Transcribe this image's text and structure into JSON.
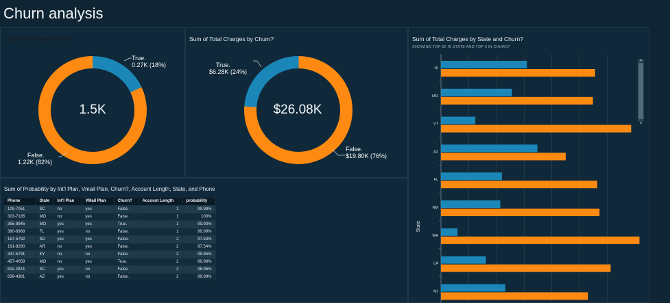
{
  "page_title": "Churn analysis",
  "colors": {
    "true": "#1a87b8",
    "false": "#ff8a12",
    "background": "#0f2533"
  },
  "risk_panel": {
    "title": "Customers under the risk",
    "center": "1.5K",
    "true_label_1": "True.",
    "true_label_2": "0.27K (18%)",
    "false_label_1": "False.",
    "false_label_2": "1.22K (82%)"
  },
  "charges_panel": {
    "title": "Sum of Total Charges by Churn?",
    "center": "$26.08K",
    "true_label_1": "True.",
    "true_label_2": "$6.28K (24%)",
    "false_label_1": "False.",
    "false_label_2": "$19.80K (76%)"
  },
  "table_panel": {
    "title": "Sum of Probability by Int'l Plan, Vmail Plan, Churn?, Account Length, State, and Phone",
    "headers": [
      "Phone",
      "State",
      "Int'l Plan",
      "VMail Plan",
      "Churn?",
      "Account Length",
      "probability"
    ],
    "rows": [
      [
        "109-7051",
        "SC",
        "no",
        "yes",
        "False.",
        "1",
        "99.98%"
      ],
      [
        "303-7185",
        "MO",
        "no",
        "yes",
        "False.",
        "1",
        "100%"
      ],
      [
        "355-8945",
        "MO",
        "yes",
        "yes",
        "True.",
        "1",
        "99.93%"
      ],
      [
        "380-6968",
        "FL",
        "yes",
        "no",
        "False.",
        "1",
        "99.99%"
      ],
      [
        "157-5792",
        "SD",
        "yes",
        "yes",
        "False.",
        "2",
        "97.53%"
      ],
      [
        "191-8280",
        "AR",
        "no",
        "yes",
        "False.",
        "2",
        "97.54%"
      ],
      [
        "347-5791",
        "KY",
        "no",
        "no",
        "False.",
        "2",
        "99.85%"
      ],
      [
        "457-4059",
        "MO",
        "no",
        "yes",
        "True.",
        "2",
        "99.98%"
      ],
      [
        "611-2924",
        "SC",
        "yes",
        "no",
        "False.",
        "2",
        "98.96%"
      ],
      [
        "639-4381",
        "AZ",
        "yes",
        "no",
        "False.",
        "2",
        "99.99%"
      ]
    ]
  },
  "chart_data": [
    {
      "type": "pie",
      "title": "Customers under the risk",
      "center_label": "1.5K",
      "slices": [
        {
          "name": "True.",
          "label": "0.27K (18%)",
          "value": 0.27,
          "percent": 18
        },
        {
          "name": "False.",
          "label": "1.22K (82%)",
          "value": 1.22,
          "percent": 82
        }
      ]
    },
    {
      "type": "pie",
      "title": "Sum of Total Charges by Churn?",
      "center_label": "$26.08K",
      "slices": [
        {
          "name": "True.",
          "label": "$6.28K (24%)",
          "value": 6.28,
          "percent": 24
        },
        {
          "name": "False.",
          "label": "$19.80K (76%)",
          "value": 19.8,
          "percent": 76
        }
      ]
    },
    {
      "type": "bar",
      "orientation": "horizontal",
      "title": "Sum of Total Charges by State and Churn?",
      "subtitle": "SHOWING TOP 50 IN STATE AND TOP 3 IN CHURN?",
      "ylabel": "State",
      "categories": [
        "HI",
        "MO",
        "VT",
        "AZ",
        "FL",
        "NM",
        "WA",
        "LA",
        "NJ"
      ],
      "xlim": [
        0,
        350
      ],
      "series": [
        {
          "color": "#1a87b8",
          "values": [
            155,
            128,
            62,
            174,
            110,
            107,
            30,
            81,
            116
          ]
        },
        {
          "color": "#ff8a12",
          "values": [
            278,
            274,
            343,
            225,
            282,
            286,
            358,
            306,
            265
          ]
        }
      ]
    }
  ]
}
